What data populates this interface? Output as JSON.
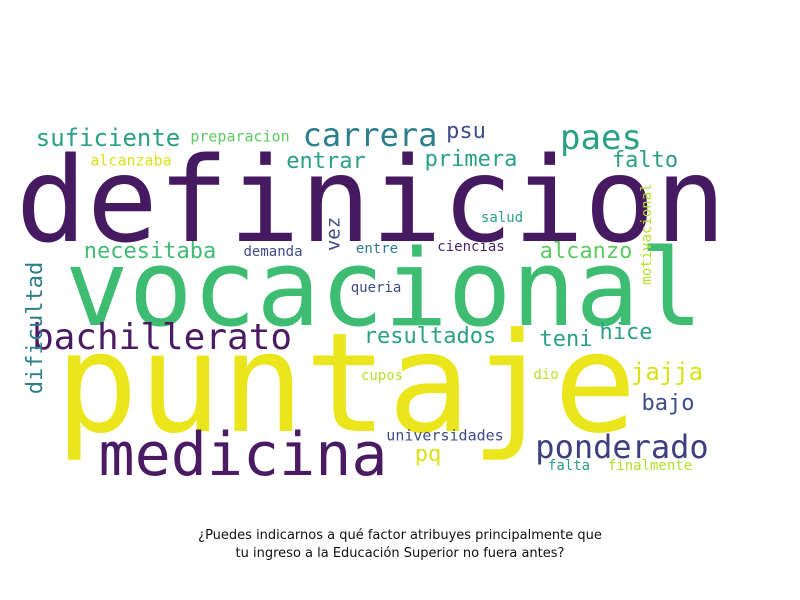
{
  "colors": {
    "background": "#ffffff",
    "dark_purple": "#4a1b63",
    "green": "#3fbf74",
    "yellow": "#ebe51b",
    "teal": "#2e8a8a",
    "blue": "#3e4d8a",
    "light_green": "#8ad55a"
  },
  "words": {
    "definicion": "definicion",
    "vocacional": "vocacional",
    "puntaje": "puntaje",
    "medicina": "medicina",
    "bachillerato": "bachillerato",
    "ponderado": "ponderado",
    "carrera": "carrera",
    "paes": "paes",
    "suficiente": "suficiente",
    "preparacion": "preparacion",
    "psu": "psu",
    "entrar": "entrar",
    "primera": "primera",
    "falto": "falto",
    "alcanzaba": "alcanzaba",
    "motivacional": "motivacional",
    "vez": "vez",
    "salud": "salud",
    "necesitaba": "necesitaba",
    "demanda": "demanda",
    "entre": "entre",
    "ciencias": "ciencias",
    "alcanzo": "alcanzo",
    "dificultad": "dificultad",
    "queria": "queria",
    "resultados": "resultados",
    "teni": "teni",
    "hice": "hice",
    "jajja": "jajja",
    "cupos": "cupos",
    "dio": "dio",
    "bajo": "bajo",
    "universidades": "universidades",
    "pq": "pq",
    "falta": "falta",
    "finalmente": "finalmente"
  },
  "caption": {
    "line1": "¿Puedes indicarnos a qué factor atribuyes principalmente que",
    "line2": "tu ingreso a la Educación Superior no fuera antes?"
  }
}
